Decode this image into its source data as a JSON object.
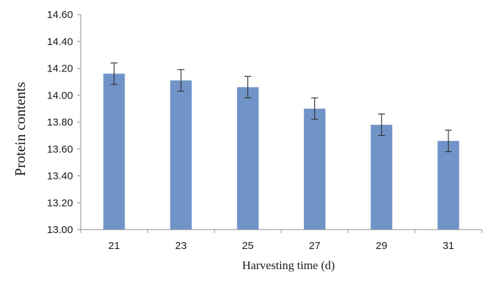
{
  "chart_data": {
    "type": "bar",
    "title": "",
    "xlabel": "Harvesting time (d)",
    "ylabel": "Protein contents",
    "categories": [
      "21",
      "23",
      "25",
      "27",
      "29",
      "31"
    ],
    "series": [
      {
        "values": [
          14.16,
          14.11,
          14.06,
          13.9,
          13.78,
          13.66
        ],
        "error": [
          0.08,
          0.08,
          0.08,
          0.08,
          0.08,
          0.08
        ],
        "color": "#7094c8"
      }
    ],
    "ylim": [
      13.0,
      14.6
    ],
    "yticks": [
      "13.00",
      "13.20",
      "13.40",
      "13.60",
      "13.80",
      "14.00",
      "14.20",
      "14.40",
      "14.60"
    ],
    "grid": false,
    "legend": "none"
  }
}
